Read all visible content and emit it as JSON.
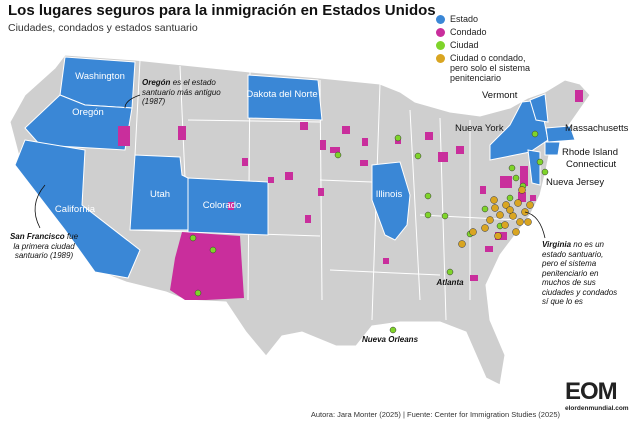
{
  "header": {
    "title": "Los lugares seguros para la inmigración en Estados Unidos",
    "subtitle": "Ciudades, condados y estados santuario"
  },
  "legend": [
    {
      "label": "Estado",
      "color": "#3a87d6"
    },
    {
      "label": "Condado",
      "color": "#c92e9c"
    },
    {
      "label": "Ciudad",
      "color": "#7fd42a"
    },
    {
      "label": "Ciudad o condado, pero solo el sistema penitenciario",
      "color": "#d9a521"
    }
  ],
  "state_labels": [
    "Washington",
    "Oregón",
    "California",
    "Utah",
    "Colorado",
    "Dakota del Norte",
    "Illinois",
    "Nueva York",
    "Vermont",
    "Massachusetts",
    "Rhode Island",
    "Connecticut",
    "Nueva Jersey"
  ],
  "city_labels": [
    "Atlanta",
    "Nueva Orleans"
  ],
  "annotations": [
    {
      "lead": "Oregón",
      "text": "es el estado santuario más antiguo (1987)"
    },
    {
      "lead": "San Francisco",
      "text": "fue la primera ciudad santuario (1989)"
    },
    {
      "lead": "Virginia",
      "text": "no es un estado santuario, pero el sistema penitenciario en muchos de sus ciudades y condados sí que lo es"
    }
  ],
  "footer": {
    "source": "Autora: Jara Monter (2025) | Fuente: Center for Immigration Studies (2025)",
    "logo": "EOM",
    "site": "elordenmundial.com"
  }
}
